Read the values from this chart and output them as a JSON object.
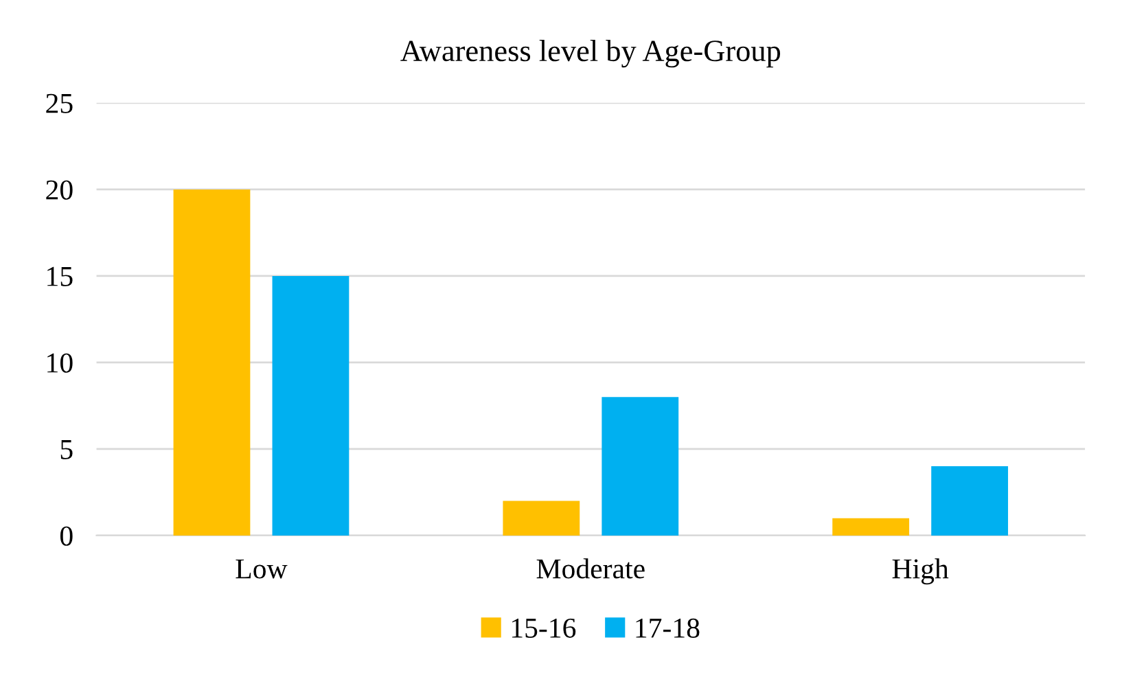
{
  "chart_data": {
    "type": "bar",
    "title": "Awareness level by Age-Group",
    "categories": [
      "Low",
      "Moderate",
      "High"
    ],
    "series": [
      {
        "name": "15-16",
        "color": "#ffc000",
        "values": [
          20,
          2,
          1
        ]
      },
      {
        "name": "17-18",
        "color": "#00b0f0",
        "values": [
          15,
          8,
          4
        ]
      }
    ],
    "ylim": [
      0,
      25
    ],
    "yticks": [
      0,
      5,
      10,
      15,
      20,
      25
    ],
    "grid": "y",
    "legend": "bottom"
  }
}
